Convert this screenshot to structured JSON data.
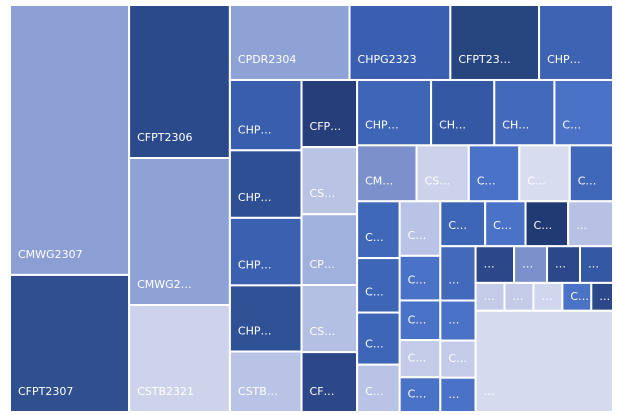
{
  "chart_data": {
    "type": "treemap",
    "categories": [
      "CMWG2307",
      "CFPT2307",
      "CFPT2306",
      "CMWG2…",
      "CSTB2321",
      "CPDR2304",
      "CHPG2323",
      "CFPT23…",
      "CHP…",
      "CHP…",
      "CHP…",
      "CHP…",
      "CHP…",
      "CSTB…",
      "CFP…",
      "CS…",
      "CP…",
      "CS…",
      "CF…",
      "CHP…",
      "CH…",
      "CH…",
      "C…",
      "CM…",
      "CS…",
      "C…",
      "C…",
      "C…",
      "C…",
      "C…",
      "C…",
      "C…",
      "C…",
      "C…",
      "C…",
      "C…",
      "C…",
      "C…",
      "C…",
      "C…",
      "…",
      "…",
      "…",
      "C…",
      "…",
      "…",
      "…",
      "…",
      "…",
      "…",
      "…",
      "…",
      "C…",
      "…",
      "…"
    ],
    "values": [
      319,
      162,
      153,
      147,
      107,
      89,
      75,
      66,
      55,
      50,
      48,
      48,
      47,
      43,
      37,
      37,
      39,
      37,
      33,
      48,
      41,
      39,
      38,
      33,
      29,
      28,
      28,
      24,
      24,
      23,
      22,
      20,
      22,
      18,
      16,
      15,
      14,
      20,
      18,
      19,
      20,
      19,
      14,
      13,
      12,
      14,
      12,
      12,
      12,
      8,
      8,
      8,
      8,
      6,
      138
    ],
    "colors": [
      "#8c9fd4",
      "#2f4f8f",
      "#2b4a8c",
      "#8ea2d6",
      "#cdd3ea",
      "#8fa2d6",
      "#3a5fb0",
      "#27457f",
      "#3e63b3",
      "#3a5eae",
      "#2e4f93",
      "#3b60b0",
      "#2f5296",
      "#b8c3e5",
      "#263f7a",
      "#b9c4e5",
      "#a0b1dd",
      "#b3bfe3",
      "#2c4888",
      "#3f65b6",
      "#3558a5",
      "#4269ba",
      "#4a72c6",
      "#7c91cc",
      "#ccd2ea",
      "#4a72c6",
      "#d8dcef",
      "#4068b9",
      "#4068b9",
      "#3e66b7",
      "#3e66b7",
      "#b8c3e5",
      "#b8c3e5",
      "#4a72c6",
      "#4a72c6",
      "#c3cbe8",
      "#4a72c6",
      "#3e66b7",
      "#4a72c6",
      "#223a73",
      "#b6c1e4",
      "#4269ba",
      "#4a72c6",
      "#c3cbe8",
      "#4a72c6",
      "#2c4888",
      "#7c91cc",
      "#2c4888",
      "#3558a5",
      "#c3cbe8",
      "#c3cbe8",
      "#d0d6ed",
      "#4a72c6",
      "#2c4888",
      "#d6daee"
    ]
  }
}
